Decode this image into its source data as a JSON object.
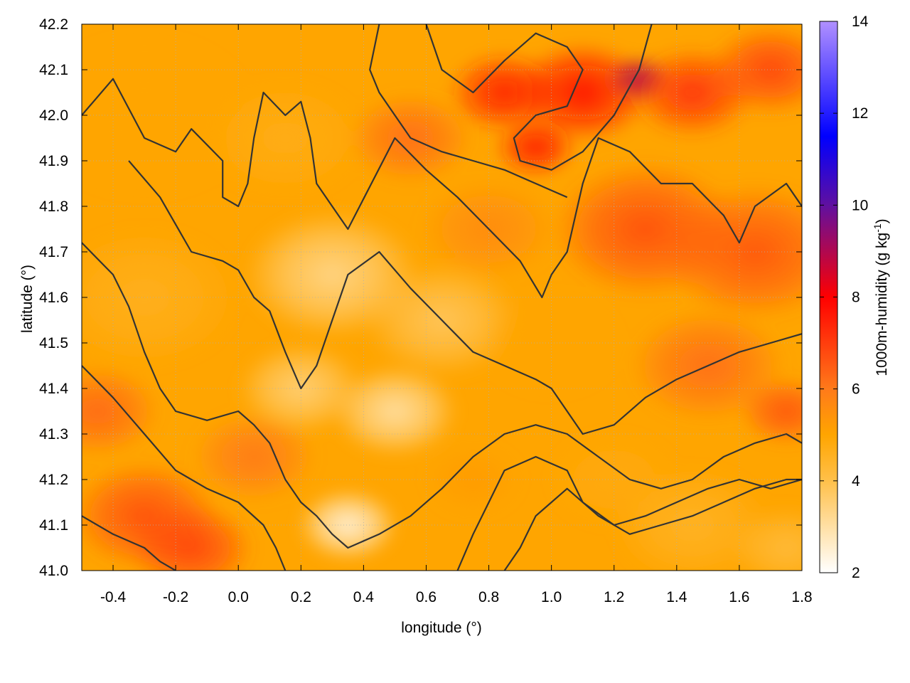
{
  "chart_data": {
    "type": "heatmap",
    "title": "",
    "xlabel": "longitude (°)",
    "ylabel": "latitude (°)",
    "colorbar_label_parts": [
      "1000m-humidity (g kg",
      "-1",
      ")"
    ],
    "xlim": [
      -0.5,
      1.8
    ],
    "ylim": [
      41.0,
      42.2
    ],
    "xticks": [
      -0.4,
      -0.2,
      0.0,
      0.2,
      0.4,
      0.6,
      0.8,
      1.0,
      1.2,
      1.4,
      1.6,
      1.8
    ],
    "xtick_labels": [
      "-0.4",
      "-0.2",
      "0.0",
      "0.2",
      "0.4",
      "0.6",
      "0.8",
      "1.0",
      "1.2",
      "1.4",
      "1.6",
      "1.8"
    ],
    "yticks": [
      41.0,
      41.1,
      41.2,
      41.3,
      41.4,
      41.5,
      41.6,
      41.7,
      41.8,
      41.9,
      42.0,
      42.1,
      42.2
    ],
    "ytick_labels": [
      "41.0",
      "41.1",
      "41.2",
      "41.3",
      "41.4",
      "41.5",
      "41.6",
      "41.7",
      "41.8",
      "41.9",
      "42.0",
      "42.1",
      "42.2"
    ],
    "colorbar_range": [
      2,
      14
    ],
    "colorbar_ticks": [
      2,
      4,
      6,
      8,
      10,
      12,
      14
    ],
    "colorbar_tick_labels": [
      "2",
      "4",
      "6",
      "8",
      "10",
      "12",
      "14"
    ],
    "colorbar_stops": [
      {
        "value": 2,
        "color": "#ffffff"
      },
      {
        "value": 4,
        "color": "#ffc04a"
      },
      {
        "value": 5,
        "color": "#ffa500"
      },
      {
        "value": 6,
        "color": "#ff7a1a"
      },
      {
        "value": 8,
        "color": "#ff0000"
      },
      {
        "value": 10,
        "color": "#6010a0"
      },
      {
        "value": 11.5,
        "color": "#0000ff"
      },
      {
        "value": 14,
        "color": "#b090ff"
      }
    ],
    "grid": true,
    "contour_color": "#333333",
    "field_points": [
      {
        "x": -0.3,
        "y": 41.12,
        "value": 6.7,
        "spread": 0.24
      },
      {
        "x": -0.15,
        "y": 41.05,
        "value": 6.9,
        "spread": 0.2
      },
      {
        "x": -0.45,
        "y": 41.35,
        "value": 6.3,
        "spread": 0.2
      },
      {
        "x": 0.05,
        "y": 41.25,
        "value": 6.0,
        "spread": 0.2
      },
      {
        "x": -0.3,
        "y": 41.6,
        "value": 4.6,
        "spread": 0.3
      },
      {
        "x": -0.3,
        "y": 42.0,
        "value": 5.0,
        "spread": 0.35
      },
      {
        "x": 0.15,
        "y": 41.95,
        "value": 4.7,
        "spread": 0.25
      },
      {
        "x": 0.3,
        "y": 41.65,
        "value": 3.3,
        "spread": 0.28
      },
      {
        "x": 0.35,
        "y": 41.1,
        "value": 2.4,
        "spread": 0.16
      },
      {
        "x": 0.5,
        "y": 41.35,
        "value": 3.0,
        "spread": 0.2
      },
      {
        "x": 0.2,
        "y": 41.4,
        "value": 3.5,
        "spread": 0.2
      },
      {
        "x": 0.65,
        "y": 41.55,
        "value": 3.8,
        "spread": 0.25
      },
      {
        "x": 0.75,
        "y": 41.2,
        "value": 5.2,
        "spread": 0.15
      },
      {
        "x": 0.55,
        "y": 41.95,
        "value": 6.2,
        "spread": 0.2
      },
      {
        "x": 0.8,
        "y": 41.75,
        "value": 5.6,
        "spread": 0.22
      },
      {
        "x": 0.85,
        "y": 42.05,
        "value": 7.5,
        "spread": 0.18
      },
      {
        "x": 1.1,
        "y": 42.05,
        "value": 7.8,
        "spread": 0.22
      },
      {
        "x": 1.28,
        "y": 42.08,
        "value": 9.0,
        "spread": 0.1
      },
      {
        "x": 0.95,
        "y": 41.93,
        "value": 7.6,
        "spread": 0.13
      },
      {
        "x": 1.45,
        "y": 42.05,
        "value": 7.2,
        "spread": 0.2
      },
      {
        "x": 1.7,
        "y": 42.1,
        "value": 6.9,
        "spread": 0.2
      },
      {
        "x": 1.3,
        "y": 41.75,
        "value": 6.7,
        "spread": 0.3
      },
      {
        "x": 1.65,
        "y": 41.7,
        "value": 6.6,
        "spread": 0.3
      },
      {
        "x": 1.5,
        "y": 41.45,
        "value": 6.2,
        "spread": 0.25
      },
      {
        "x": 1.75,
        "y": 41.35,
        "value": 6.6,
        "spread": 0.15
      },
      {
        "x": 1.2,
        "y": 41.2,
        "value": 4.8,
        "spread": 0.2
      },
      {
        "x": 1.45,
        "y": 41.1,
        "value": 4.5,
        "spread": 0.25
      },
      {
        "x": 1.75,
        "y": 41.05,
        "value": 4.2,
        "spread": 0.18
      },
      {
        "x": 1.0,
        "y": 41.5,
        "value": 5.0,
        "spread": 0.22
      }
    ],
    "contours": [
      [
        [
          -0.5,
          42.0
        ],
        [
          -0.4,
          42.08
        ],
        [
          -0.3,
          41.95
        ],
        [
          -0.2,
          41.92
        ],
        [
          -0.15,
          41.97
        ],
        [
          -0.05,
          41.9
        ],
        [
          -0.05,
          41.82
        ],
        [
          0.0,
          41.8
        ],
        [
          0.03,
          41.85
        ],
        [
          0.05,
          41.95
        ],
        [
          0.08,
          42.05
        ],
        [
          0.15,
          42.0
        ],
        [
          0.2,
          42.03
        ],
        [
          0.23,
          41.95
        ],
        [
          0.25,
          41.85
        ],
        [
          0.3,
          41.8
        ],
        [
          0.35,
          41.75
        ],
        [
          0.5,
          41.95
        ],
        [
          0.6,
          41.88
        ],
        [
          0.7,
          41.82
        ],
        [
          0.8,
          41.75
        ],
        [
          0.9,
          41.68
        ],
        [
          0.97,
          41.6
        ],
        [
          1.0,
          41.65
        ],
        [
          1.05,
          41.7
        ],
        [
          1.1,
          41.85
        ],
        [
          1.15,
          41.95
        ],
        [
          1.25,
          41.92
        ],
        [
          1.35,
          41.85
        ],
        [
          1.45,
          41.85
        ],
        [
          1.55,
          41.78
        ],
        [
          1.6,
          41.72
        ],
        [
          1.65,
          41.8
        ],
        [
          1.75,
          41.85
        ],
        [
          1.8,
          41.8
        ]
      ],
      [
        [
          -0.35,
          41.9
        ],
        [
          -0.25,
          41.82
        ],
        [
          -0.15,
          41.7
        ],
        [
          -0.05,
          41.68
        ],
        [
          0.0,
          41.66
        ],
        [
          0.05,
          41.6
        ],
        [
          0.1,
          41.57
        ],
        [
          0.15,
          41.48
        ],
        [
          0.2,
          41.4
        ],
        [
          0.25,
          41.45
        ],
        [
          0.3,
          41.55
        ],
        [
          0.35,
          41.65
        ],
        [
          0.45,
          41.7
        ],
        [
          0.55,
          41.62
        ],
        [
          0.65,
          41.55
        ],
        [
          0.75,
          41.48
        ],
        [
          0.85,
          41.45
        ],
        [
          0.95,
          41.42
        ],
        [
          1.0,
          41.4
        ],
        [
          1.05,
          41.35
        ],
        [
          1.1,
          41.3
        ],
        [
          1.2,
          41.32
        ],
        [
          1.3,
          41.38
        ],
        [
          1.4,
          41.42
        ],
        [
          1.5,
          41.45
        ],
        [
          1.6,
          41.48
        ],
        [
          1.7,
          41.5
        ],
        [
          1.8,
          41.52
        ]
      ],
      [
        [
          -0.5,
          41.72
        ],
        [
          -0.4,
          41.65
        ],
        [
          -0.35,
          41.58
        ],
        [
          -0.3,
          41.48
        ],
        [
          -0.25,
          41.4
        ],
        [
          -0.2,
          41.35
        ],
        [
          -0.1,
          41.33
        ],
        [
          0.0,
          41.35
        ],
        [
          0.05,
          41.32
        ],
        [
          0.1,
          41.28
        ],
        [
          0.15,
          41.2
        ],
        [
          0.2,
          41.15
        ],
        [
          0.25,
          41.12
        ],
        [
          0.3,
          41.08
        ],
        [
          0.35,
          41.05
        ],
        [
          0.45,
          41.08
        ],
        [
          0.55,
          41.12
        ],
        [
          0.65,
          41.18
        ],
        [
          0.75,
          41.25
        ],
        [
          0.85,
          41.3
        ],
        [
          0.95,
          41.32
        ],
        [
          1.05,
          41.3
        ],
        [
          1.15,
          41.25
        ],
        [
          1.25,
          41.2
        ],
        [
          1.35,
          41.18
        ],
        [
          1.45,
          41.2
        ],
        [
          1.55,
          41.25
        ],
        [
          1.65,
          41.28
        ],
        [
          1.75,
          41.3
        ],
        [
          1.8,
          41.28
        ]
      ],
      [
        [
          -0.5,
          41.45
        ],
        [
          -0.4,
          41.38
        ],
        [
          -0.3,
          41.3
        ],
        [
          -0.2,
          41.22
        ],
        [
          -0.1,
          41.18
        ],
        [
          0.0,
          41.15
        ],
        [
          0.08,
          41.1
        ],
        [
          0.12,
          41.05
        ],
        [
          0.15,
          41.0
        ]
      ],
      [
        [
          -0.5,
          41.12
        ],
        [
          -0.4,
          41.08
        ],
        [
          -0.3,
          41.05
        ],
        [
          -0.25,
          41.02
        ],
        [
          -0.2,
          41.0
        ]
      ],
      [
        [
          0.7,
          41.0
        ],
        [
          0.75,
          41.08
        ],
        [
          0.8,
          41.15
        ],
        [
          0.85,
          41.22
        ],
        [
          0.95,
          41.25
        ],
        [
          1.05,
          41.22
        ],
        [
          1.1,
          41.15
        ],
        [
          1.2,
          41.1
        ],
        [
          1.3,
          41.12
        ],
        [
          1.4,
          41.15
        ],
        [
          1.5,
          41.18
        ],
        [
          1.6,
          41.2
        ],
        [
          1.7,
          41.18
        ],
        [
          1.8,
          41.2
        ]
      ],
      [
        [
          0.85,
          41.0
        ],
        [
          0.9,
          41.05
        ],
        [
          0.95,
          41.12
        ],
        [
          1.05,
          41.18
        ],
        [
          1.15,
          41.12
        ],
        [
          1.25,
          41.08
        ],
        [
          1.35,
          41.1
        ],
        [
          1.45,
          41.12
        ],
        [
          1.55,
          41.15
        ],
        [
          1.65,
          41.18
        ],
        [
          1.75,
          41.2
        ],
        [
          1.8,
          41.2
        ]
      ],
      [
        [
          0.6,
          42.2
        ],
        [
          0.65,
          42.1
        ],
        [
          0.75,
          42.05
        ],
        [
          0.85,
          42.12
        ],
        [
          0.95,
          42.18
        ],
        [
          1.05,
          42.15
        ],
        [
          1.1,
          42.1
        ],
        [
          1.05,
          42.02
        ],
        [
          0.95,
          42.0
        ],
        [
          0.88,
          41.95
        ],
        [
          0.9,
          41.9
        ],
        [
          1.0,
          41.88
        ],
        [
          1.1,
          41.92
        ],
        [
          1.2,
          42.0
        ],
        [
          1.28,
          42.1
        ],
        [
          1.32,
          42.2
        ]
      ],
      [
        [
          0.45,
          42.2
        ],
        [
          0.42,
          42.1
        ],
        [
          0.45,
          42.05
        ],
        [
          0.5,
          42.0
        ],
        [
          0.55,
          41.95
        ],
        [
          0.65,
          41.92
        ],
        [
          0.75,
          41.9
        ],
        [
          0.85,
          41.88
        ],
        [
          0.95,
          41.85
        ],
        [
          1.05,
          41.82
        ]
      ]
    ]
  }
}
